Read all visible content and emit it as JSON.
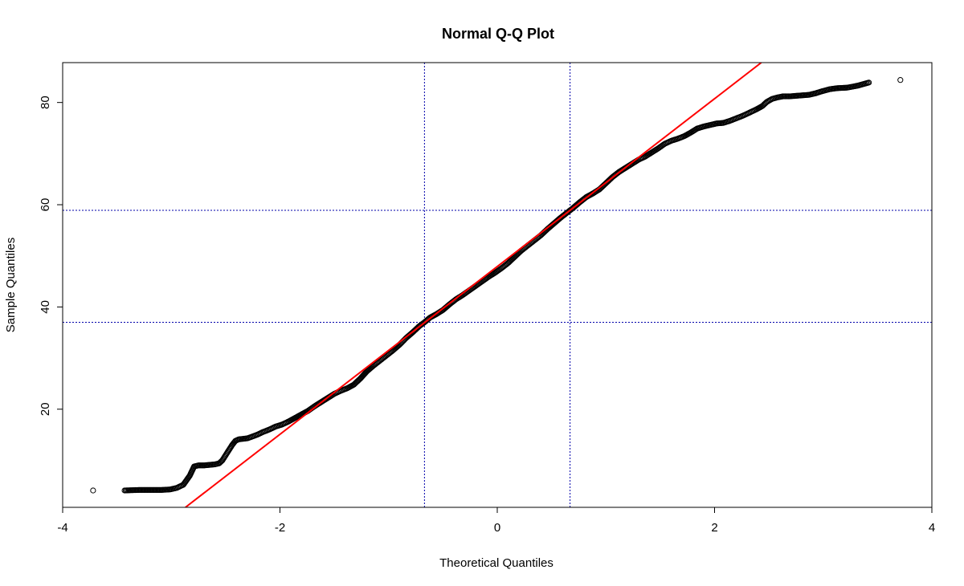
{
  "chart_data": {
    "type": "scatter",
    "title": "Normal Q-Q Plot",
    "xlabel": "Theoretical Quantiles",
    "ylabel": "Sample Quantiles",
    "xlim": [
      -4,
      4
    ],
    "ylim": [
      0.8,
      87.8
    ],
    "x_ticks": [
      "-4",
      "-2",
      "0",
      "2",
      "4"
    ],
    "y_ticks": [
      "20",
      "40",
      "60",
      "80"
    ],
    "grid": false,
    "reference_line": {
      "color": "#ff0000",
      "points": [
        [
          -2.87,
          0.8
        ],
        [
          2.43,
          87.8
        ]
      ]
    },
    "vertical_lines": [
      -0.67,
      0.67
    ],
    "horizontal_lines": [
      37.0,
      58.9
    ],
    "guide_line_color": "#0000aa",
    "point_color": "#000000",
    "series": [
      {
        "points": [
          [
            -3.72,
            4.1
          ],
          [
            -3.43,
            4.1
          ],
          [
            -3.29,
            4.2
          ],
          [
            -3.18,
            4.2
          ],
          [
            -3.09,
            4.2
          ],
          [
            -3.01,
            4.3
          ],
          [
            -2.95,
            4.6
          ],
          [
            -2.89,
            5.2
          ],
          [
            -2.83,
            7.0
          ],
          [
            -2.79,
            8.8
          ],
          [
            -2.75,
            9.0
          ],
          [
            -2.7,
            9.0
          ],
          [
            -2.65,
            9.1
          ],
          [
            -2.6,
            9.2
          ],
          [
            -2.56,
            9.4
          ],
          [
            -2.53,
            10.0
          ],
          [
            -2.5,
            11.0
          ],
          [
            -2.47,
            12.0
          ],
          [
            -2.44,
            13.0
          ],
          [
            -2.41,
            13.8
          ],
          [
            -2.38,
            14.1
          ],
          [
            -2.34,
            14.2
          ],
          [
            -2.3,
            14.3
          ],
          [
            -2.26,
            14.6
          ],
          [
            -2.21,
            15.0
          ],
          [
            -2.16,
            15.5
          ],
          [
            -2.1,
            16.0
          ],
          [
            -2.04,
            16.6
          ],
          [
            -1.98,
            17.0
          ],
          [
            -1.92,
            17.6
          ],
          [
            -1.86,
            18.3
          ],
          [
            -1.8,
            19.0
          ],
          [
            -1.74,
            19.7
          ],
          [
            -1.68,
            20.6
          ],
          [
            -1.62,
            21.4
          ],
          [
            -1.56,
            22.2
          ],
          [
            -1.5,
            23.0
          ],
          [
            -1.44,
            23.6
          ],
          [
            -1.38,
            24.1
          ],
          [
            -1.32,
            24.8
          ],
          [
            -1.26,
            26.0
          ],
          [
            -1.2,
            27.4
          ],
          [
            -1.14,
            28.5
          ],
          [
            -1.08,
            29.5
          ],
          [
            -1.02,
            30.5
          ],
          [
            -0.96,
            31.5
          ],
          [
            -0.9,
            32.6
          ],
          [
            -0.84,
            33.9
          ],
          [
            -0.78,
            35.0
          ],
          [
            -0.72,
            36.2
          ],
          [
            -0.67,
            37.0
          ],
          [
            -0.62,
            37.9
          ],
          [
            -0.56,
            38.6
          ],
          [
            -0.5,
            39.4
          ],
          [
            -0.44,
            40.5
          ],
          [
            -0.38,
            41.5
          ],
          [
            -0.32,
            42.3
          ],
          [
            -0.26,
            43.2
          ],
          [
            -0.2,
            44.1
          ],
          [
            -0.14,
            45.0
          ],
          [
            -0.08,
            45.9
          ],
          [
            -0.02,
            46.7
          ],
          [
            0.04,
            47.6
          ],
          [
            0.1,
            48.6
          ],
          [
            0.16,
            49.8
          ],
          [
            0.22,
            51.0
          ],
          [
            0.28,
            52.0
          ],
          [
            0.34,
            53.0
          ],
          [
            0.4,
            54.0
          ],
          [
            0.46,
            55.2
          ],
          [
            0.52,
            56.3
          ],
          [
            0.58,
            57.4
          ],
          [
            0.64,
            58.4
          ],
          [
            0.7,
            59.4
          ],
          [
            0.76,
            60.5
          ],
          [
            0.82,
            61.5
          ],
          [
            0.88,
            62.2
          ],
          [
            0.94,
            63.0
          ],
          [
            1.0,
            64.2
          ],
          [
            1.06,
            65.4
          ],
          [
            1.12,
            66.4
          ],
          [
            1.18,
            67.2
          ],
          [
            1.24,
            68.0
          ],
          [
            1.3,
            68.8
          ],
          [
            1.36,
            69.4
          ],
          [
            1.42,
            70.2
          ],
          [
            1.48,
            71.0
          ],
          [
            1.54,
            71.9
          ],
          [
            1.6,
            72.5
          ],
          [
            1.66,
            72.9
          ],
          [
            1.72,
            73.4
          ],
          [
            1.78,
            74.1
          ],
          [
            1.84,
            74.9
          ],
          [
            1.9,
            75.3
          ],
          [
            1.96,
            75.6
          ],
          [
            2.02,
            75.9
          ],
          [
            2.08,
            76.0
          ],
          [
            2.14,
            76.4
          ],
          [
            2.2,
            76.9
          ],
          [
            2.26,
            77.4
          ],
          [
            2.32,
            78.0
          ],
          [
            2.38,
            78.6
          ],
          [
            2.44,
            79.3
          ],
          [
            2.48,
            80.1
          ],
          [
            2.53,
            80.7
          ],
          [
            2.58,
            81.0
          ],
          [
            2.63,
            81.2
          ],
          [
            2.69,
            81.2
          ],
          [
            2.75,
            81.3
          ],
          [
            2.81,
            81.4
          ],
          [
            2.87,
            81.5
          ],
          [
            2.93,
            81.8
          ],
          [
            2.99,
            82.2
          ],
          [
            3.06,
            82.6
          ],
          [
            3.13,
            82.8
          ],
          [
            3.22,
            82.9
          ],
          [
            3.32,
            83.3
          ],
          [
            3.42,
            83.9
          ],
          [
            3.71,
            84.4
          ]
        ]
      }
    ]
  }
}
